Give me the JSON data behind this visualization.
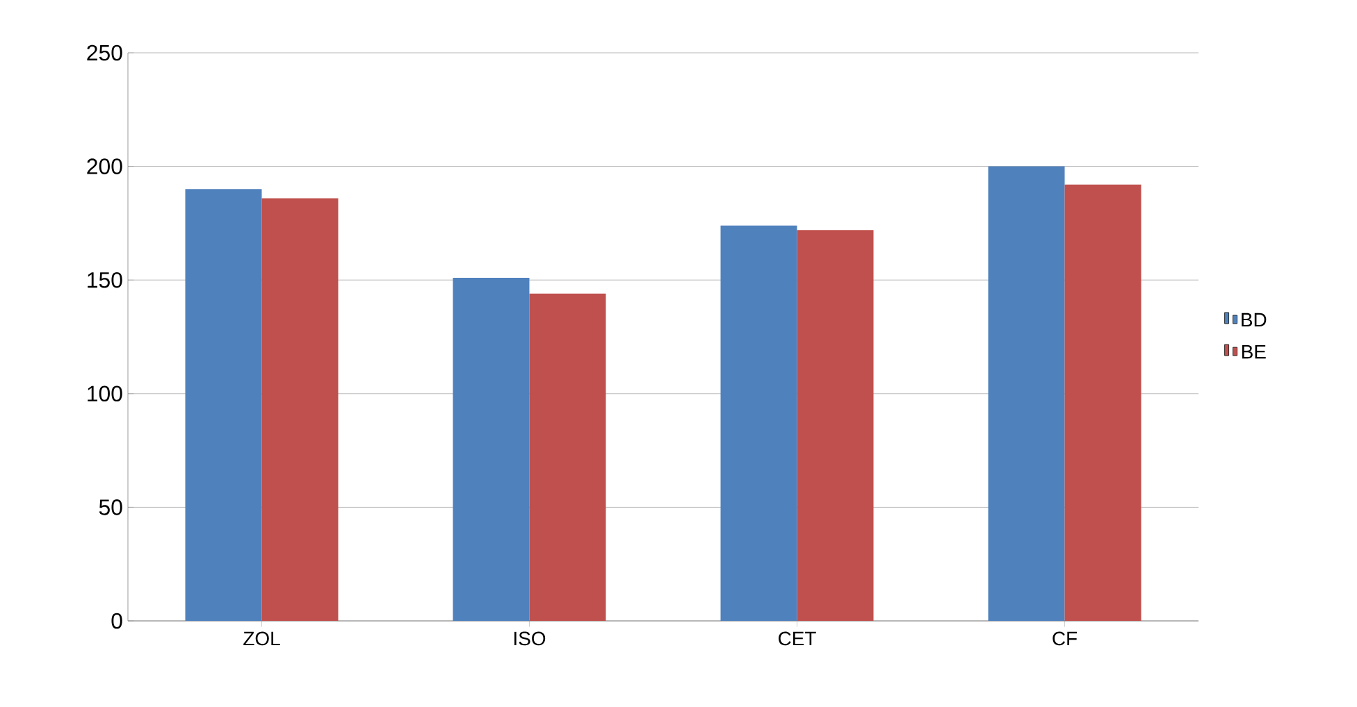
{
  "chart_data": {
    "type": "bar",
    "categories": [
      "ZOL",
      "ISO",
      "CET",
      "CF"
    ],
    "series": [
      {
        "name": "BD",
        "color": "#4f81bd",
        "values": [
          190,
          151,
          174,
          200
        ]
      },
      {
        "name": "BE",
        "color": "#c0504d",
        "values": [
          186,
          144,
          172,
          192
        ]
      }
    ],
    "ylim": [
      0,
      250
    ],
    "yticks": [
      0,
      50,
      100,
      150,
      200,
      250
    ],
    "grid": "y",
    "legend": "right"
  }
}
